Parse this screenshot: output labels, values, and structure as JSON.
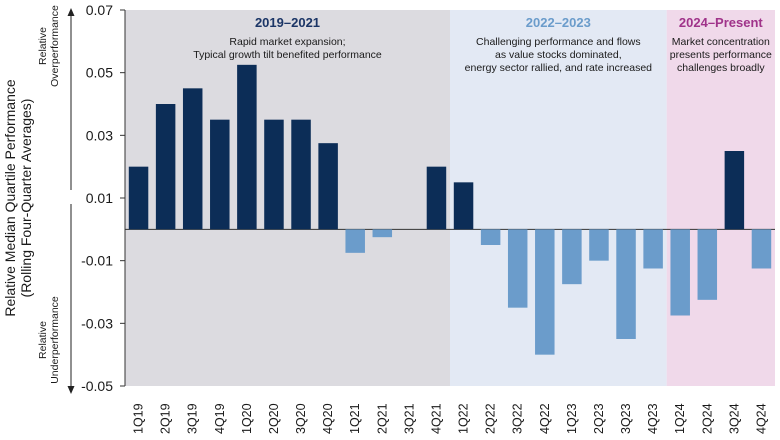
{
  "chart_data": {
    "type": "bar",
    "ylabel": "Relative Median Quartile Performance",
    "ylabel_sub": "(Rolling Four-Quarter Averages)",
    "ylim": [
      -0.05,
      0.07
    ],
    "yticks": [
      -0.05,
      -0.03,
      -0.01,
      0.01,
      0.03,
      0.05,
      0.07
    ],
    "ytick_labels": [
      "-0.05",
      "-0.03",
      "-0.01",
      "0.01",
      "0.03",
      "0.05",
      "0.07"
    ],
    "upper_annotation": [
      "Relative",
      "Overperformance"
    ],
    "lower_annotation": [
      "Relative",
      "Underperformance"
    ],
    "categories": [
      "1Q19",
      "2Q19",
      "3Q19",
      "4Q19",
      "1Q20",
      "2Q20",
      "3Q20",
      "4Q20",
      "1Q21",
      "2Q21",
      "3Q21",
      "4Q21",
      "1Q22",
      "2Q22",
      "3Q22",
      "4Q22",
      "1Q23",
      "2Q23",
      "3Q23",
      "4Q23",
      "1Q24",
      "2Q24",
      "3Q24",
      "4Q24"
    ],
    "values": [
      0.02,
      0.04,
      0.045,
      0.035,
      0.0525,
      0.035,
      0.035,
      0.0275,
      -0.0075,
      -0.0025,
      0.0,
      0.02,
      0.015,
      -0.005,
      -0.025,
      -0.04,
      -0.0175,
      -0.01,
      -0.035,
      -0.0125,
      -0.0275,
      -0.0225,
      0.025,
      -0.0125
    ],
    "colors": {
      "positive": "#0c2d57",
      "negative": "#6b9ccb"
    },
    "periods": [
      {
        "title": "2019–2021",
        "lines": [
          "Rapid market expansion;",
          "Typical growth tilt benefited performance"
        ],
        "start": 0,
        "end": 12,
        "bg": "#dcdbe0",
        "title_color": "#1b3566"
      },
      {
        "title": "2022–2023",
        "lines": [
          "Challenging performance and flows",
          "as value stocks dominated,",
          "energy sector rallied, and rate increased"
        ],
        "start": 12,
        "end": 20,
        "bg": "#e3e9f4",
        "title_color": "#6b9ccb"
      },
      {
        "title": "2024–Present",
        "lines": [
          "Market concentration",
          "presents performance",
          "challenges broadly"
        ],
        "start": 20,
        "end": 24,
        "bg": "#f0d9ea",
        "title_color": "#a0338a"
      }
    ]
  }
}
